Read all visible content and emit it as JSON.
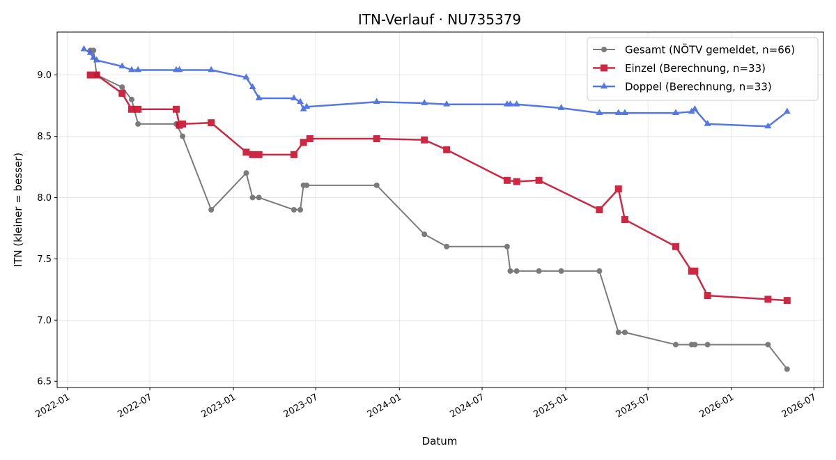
{
  "chart_data": {
    "type": "line",
    "title": "ITN-Verlauf · NU735379",
    "xlabel": "Datum",
    "ylabel": "ITN  (kleiner = besser)",
    "x_type": "date",
    "xlim": [
      "2021-12-09",
      "2026-07-22"
    ],
    "ylim": [
      6.45,
      9.35
    ],
    "x_ticks": [
      "2022-01-01",
      "2022-07-01",
      "2023-01-01",
      "2023-07-01",
      "2024-01-01",
      "2024-07-01",
      "2025-01-01",
      "2025-07-01",
      "2026-01-01",
      "2026-07-01"
    ],
    "x_tick_labels": [
      "2022-01",
      "2022-07",
      "2023-01",
      "2023-07",
      "2024-01",
      "2024-07",
      "2025-01",
      "2025-07",
      "2026-01",
      "2026-07"
    ],
    "y_ticks": [
      6.5,
      7.0,
      7.5,
      8.0,
      8.5,
      9.0
    ],
    "y_tick_labels": [
      "6.5",
      "7.0",
      "7.5",
      "8.0",
      "8.5",
      "9.0"
    ],
    "grid": true,
    "legend_position": "top-right",
    "series": [
      {
        "name": "Gesamt (NÖTV gemeldet, n=66)",
        "color": "#444444",
        "marker": "circle",
        "points": [
          [
            "2022-02-20",
            9.2
          ],
          [
            "2022-02-27",
            9.2
          ],
          [
            "2022-03-06",
            9.0
          ],
          [
            "2022-05-01",
            8.9
          ],
          [
            "2022-05-22",
            8.8
          ],
          [
            "2022-06-05",
            8.6
          ],
          [
            "2022-08-28",
            8.6
          ],
          [
            "2022-09-11",
            8.5
          ],
          [
            "2022-11-13",
            7.9
          ],
          [
            "2023-01-29",
            8.2
          ],
          [
            "2023-02-12",
            8.0
          ],
          [
            "2023-02-26",
            8.0
          ],
          [
            "2023-05-14",
            7.9
          ],
          [
            "2023-05-28",
            7.9
          ],
          [
            "2023-06-04",
            8.1
          ],
          [
            "2023-06-11",
            8.1
          ],
          [
            "2023-11-12",
            8.1
          ],
          [
            "2024-02-25",
            7.7
          ],
          [
            "2024-04-14",
            7.6
          ],
          [
            "2024-08-25",
            7.6
          ],
          [
            "2024-09-01",
            7.4
          ],
          [
            "2024-09-15",
            7.4
          ],
          [
            "2024-11-03",
            7.4
          ],
          [
            "2024-12-22",
            7.4
          ],
          [
            "2025-03-16",
            7.4
          ],
          [
            "2025-04-27",
            6.9
          ],
          [
            "2025-05-11",
            6.9
          ],
          [
            "2025-08-31",
            6.8
          ],
          [
            "2025-10-05",
            6.8
          ],
          [
            "2025-10-12",
            6.8
          ],
          [
            "2025-11-09",
            6.8
          ],
          [
            "2026-03-22",
            6.8
          ],
          [
            "2026-05-03",
            6.6
          ]
        ]
      },
      {
        "name": "Einzel (Berechnung, n=33)",
        "color": "#c8102e",
        "marker": "square",
        "points": [
          [
            "2022-02-20",
            9.0
          ],
          [
            "2022-03-06",
            9.0
          ],
          [
            "2022-05-01",
            8.85
          ],
          [
            "2022-05-22",
            8.72
          ],
          [
            "2022-06-05",
            8.72
          ],
          [
            "2022-08-28",
            8.72
          ],
          [
            "2022-09-04",
            8.59
          ],
          [
            "2022-09-11",
            8.6
          ],
          [
            "2022-11-13",
            8.61
          ],
          [
            "2023-01-29",
            8.37
          ],
          [
            "2023-02-12",
            8.35
          ],
          [
            "2023-02-26",
            8.35
          ],
          [
            "2023-05-14",
            8.35
          ],
          [
            "2023-06-04",
            8.45
          ],
          [
            "2023-06-18",
            8.48
          ],
          [
            "2023-11-12",
            8.48
          ],
          [
            "2024-02-25",
            8.47
          ],
          [
            "2024-04-14",
            8.39
          ],
          [
            "2024-08-25",
            8.14
          ],
          [
            "2024-09-15",
            8.13
          ],
          [
            "2024-11-03",
            8.14
          ],
          [
            "2025-03-16",
            7.9
          ],
          [
            "2025-04-27",
            8.07
          ],
          [
            "2025-05-11",
            7.82
          ],
          [
            "2025-08-31",
            7.6
          ],
          [
            "2025-10-05",
            7.4
          ],
          [
            "2025-10-12",
            7.4
          ],
          [
            "2025-11-09",
            7.2
          ],
          [
            "2026-03-22",
            7.17
          ],
          [
            "2026-05-03",
            7.16
          ]
        ]
      },
      {
        "name": "Doppel (Berechnung, n=33)",
        "color": "#4169e1",
        "marker": "triangle",
        "points": [
          [
            "2022-02-06",
            9.21
          ],
          [
            "2022-02-20",
            9.18
          ],
          [
            "2022-02-27",
            9.14
          ],
          [
            "2022-03-06",
            9.12
          ],
          [
            "2022-05-01",
            9.07
          ],
          [
            "2022-05-22",
            9.04
          ],
          [
            "2022-06-05",
            9.04
          ],
          [
            "2022-08-28",
            9.04
          ],
          [
            "2022-09-04",
            9.04
          ],
          [
            "2022-11-13",
            9.04
          ],
          [
            "2023-01-29",
            8.98
          ],
          [
            "2023-02-12",
            8.9
          ],
          [
            "2023-02-26",
            8.81
          ],
          [
            "2023-05-14",
            8.81
          ],
          [
            "2023-05-28",
            8.78
          ],
          [
            "2023-06-04",
            8.72
          ],
          [
            "2023-06-11",
            8.74
          ],
          [
            "2023-11-12",
            8.78
          ],
          [
            "2024-02-25",
            8.77
          ],
          [
            "2024-04-14",
            8.76
          ],
          [
            "2024-08-25",
            8.76
          ],
          [
            "2024-09-01",
            8.76
          ],
          [
            "2024-09-15",
            8.76
          ],
          [
            "2024-12-22",
            8.73
          ],
          [
            "2025-03-16",
            8.69
          ],
          [
            "2025-04-27",
            8.69
          ],
          [
            "2025-05-11",
            8.69
          ],
          [
            "2025-08-31",
            8.69
          ],
          [
            "2025-10-05",
            8.7
          ],
          [
            "2025-10-12",
            8.72
          ],
          [
            "2025-11-09",
            8.6
          ],
          [
            "2026-03-22",
            8.58
          ],
          [
            "2026-05-03",
            8.7
          ]
        ]
      }
    ]
  }
}
